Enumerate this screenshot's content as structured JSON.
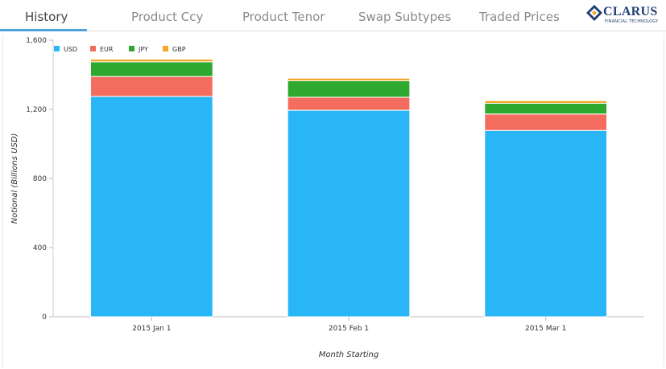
{
  "tabs": [
    {
      "label": "History",
      "active": true
    },
    {
      "label": "Product Ccy",
      "active": false
    },
    {
      "label": "Product Tenor",
      "active": false
    },
    {
      "label": "Swap Subtypes",
      "active": false
    },
    {
      "label": "Traded Prices",
      "active": false
    }
  ],
  "logo": {
    "name": "CLARUS",
    "tagline": "FINANCIAL TECHNOLOGY"
  },
  "colors": {
    "accent": "#4da3dc",
    "brand": "#1f3e75",
    "USD": "#29b6f6",
    "EUR": "#f46c5e",
    "JPY": "#2ea82e",
    "GBP": "#f5a623"
  },
  "chart_data": {
    "type": "bar",
    "stacked": true,
    "categories": [
      "2015 Jan 1",
      "2015 Feb 1",
      "2015 Mar 1"
    ],
    "series": [
      {
        "name": "USD",
        "values": [
          1275,
          1195,
          1078
        ]
      },
      {
        "name": "EUR",
        "values": [
          115,
          75,
          95
        ]
      },
      {
        "name": "JPY",
        "values": [
          85,
          95,
          62
        ]
      },
      {
        "name": "GBP",
        "values": [
          15,
          15,
          15
        ]
      }
    ],
    "xlabel": "Month Starting",
    "ylabel": "Notional (Billions USD)",
    "ylim": [
      0,
      1600
    ],
    "yticks": [
      0,
      400,
      800,
      1200,
      1600
    ],
    "ytick_labels": [
      "0",
      "400",
      "800",
      "1,200",
      "1,600"
    ],
    "legend_position": "top-left",
    "grid": false
  }
}
